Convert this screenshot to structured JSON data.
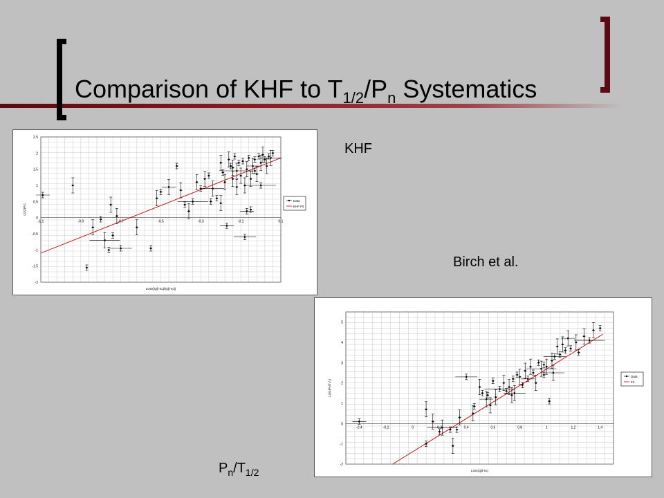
{
  "slide": {
    "title_main_1": "Comparison of KHF to T",
    "title_sub_1": "1/2",
    "title_main_2": "/P",
    "title_sub_2": "n",
    "title_main_3": " Systematics",
    "label_khf": "KHF",
    "label_birch": "Birch et al.",
    "label_pn_main": "P",
    "label_pn_sub": "n",
    "label_pn_mid": "/T",
    "label_pn_sub2": "1/2"
  },
  "colors": {
    "background": "#c0c0c0",
    "accent": "#6b0f16",
    "fit_line": "#cc0000"
  },
  "chart_data": [
    {
      "type": "scatter",
      "xlabel": "LOG([Qβ-Sₙ]/[Qβ-Sₙ])",
      "ylabel": "LOG(Pₙ)",
      "xlim": [
        -1.1,
        0.1
      ],
      "ylim": [
        -2,
        2.5
      ],
      "xticks": [
        "-1.1",
        "-0.9",
        "-0.7",
        "-0.5",
        "-0.3",
        "-0.1",
        "0.1"
      ],
      "xtick_values": [
        -1.1,
        -0.9,
        -0.7,
        -0.5,
        -0.3,
        -0.1,
        0.1
      ],
      "yticks": [
        "-2",
        "-1.5",
        "-1",
        "-0.5",
        "0",
        "0.5",
        "1",
        "1.5",
        "2",
        "2.5"
      ],
      "ytick_values": [
        -2,
        -1.5,
        -1,
        -0.5,
        0,
        0.5,
        1,
        1.5,
        2,
        2.5
      ],
      "legend": [
        "Data",
        "KHF Fit"
      ],
      "legend_position": "right",
      "grid": true,
      "fit": {
        "x": [
          -1.1,
          0.1
        ],
        "y": [
          -1.1,
          1.85
        ]
      },
      "series": [
        {
          "name": "Data",
          "points": [
            [
              -1.09,
              0.7
            ],
            [
              -0.94,
              1.0
            ],
            [
              -0.87,
              -1.55
            ],
            [
              -0.84,
              -0.3
            ],
            [
              -0.8,
              -0.05
            ],
            [
              -0.78,
              -0.7
            ],
            [
              -0.76,
              -1.0
            ],
            [
              -0.75,
              0.4
            ],
            [
              -0.74,
              -0.55
            ],
            [
              -0.72,
              0.05
            ],
            [
              -0.7,
              -0.95
            ],
            [
              -0.62,
              -0.3
            ],
            [
              -0.55,
              -0.95
            ],
            [
              -0.52,
              0.6
            ],
            [
              -0.5,
              0.8
            ],
            [
              -0.46,
              0.95
            ],
            [
              -0.42,
              1.6
            ],
            [
              -0.4,
              0.85
            ],
            [
              -0.38,
              0.4
            ],
            [
              -0.36,
              0.2
            ],
            [
              -0.34,
              0.5
            ],
            [
              -0.32,
              1.1
            ],
            [
              -0.3,
              0.9
            ],
            [
              -0.28,
              1.2
            ],
            [
              -0.26,
              1.3
            ],
            [
              -0.24,
              0.9
            ],
            [
              -0.22,
              0.6
            ],
            [
              -0.2,
              1.7
            ],
            [
              -0.19,
              1.4
            ],
            [
              -0.18,
              1.1
            ],
            [
              -0.17,
              -0.25
            ],
            [
              -0.16,
              1.8
            ],
            [
              -0.15,
              1.6
            ],
            [
              -0.14,
              1.2
            ],
            [
              -0.13,
              1.9
            ],
            [
              -0.12,
              1.45
            ],
            [
              -0.11,
              1.7
            ],
            [
              -0.1,
              1.3
            ],
            [
              -0.09,
              1.75
            ],
            [
              -0.08,
              1.0
            ],
            [
              -0.08,
              -0.6
            ],
            [
              -0.07,
              1.5
            ],
            [
              -0.06,
              1.85
            ],
            [
              -0.05,
              1.2
            ],
            [
              -0.05,
              0.25
            ],
            [
              -0.04,
              1.6
            ],
            [
              -0.03,
              1.8
            ],
            [
              -0.02,
              1.35
            ],
            [
              -0.01,
              1.9
            ],
            [
              0.0,
              1.7
            ],
            [
              0.0,
              1.0
            ],
            [
              0.01,
              1.95
            ],
            [
              0.02,
              1.8
            ],
            [
              0.03,
              1.6
            ],
            [
              0.04,
              1.9
            ],
            [
              0.05,
              1.85
            ],
            [
              0.06,
              2.0
            ],
            [
              -0.2,
              0.45
            ],
            [
              -0.25,
              0.5
            ],
            [
              -0.12,
              0.95
            ],
            [
              -0.07,
              0.2
            ],
            [
              -0.14,
              1.55
            ],
            [
              -0.03,
              1.45
            ]
          ]
        },
        {
          "name": "KHF Fit",
          "values": [
            -1.1,
            1.85
          ]
        }
      ]
    },
    {
      "type": "scatter",
      "xlabel": "LOG(Qβ-Sₙ)",
      "ylabel": "LOG(Pₙ/T₁/₂)",
      "xlim": [
        -0.5,
        1.5
      ],
      "ylim": [
        -2,
        5.5
      ],
      "xticks": [
        "-0.4",
        "-0.2",
        "0",
        "0.2",
        "0.4",
        "0.6",
        "0.8",
        "1",
        "1.2",
        "1.4"
      ],
      "xtick_values": [
        -0.4,
        -0.2,
        0,
        0.2,
        0.4,
        0.6,
        0.8,
        1,
        1.2,
        1.4
      ],
      "yticks": [
        "-2",
        "-1",
        "0",
        "1",
        "2",
        "3",
        "4",
        "5"
      ],
      "ytick_values": [
        -2,
        -1,
        0,
        1,
        2,
        3,
        4,
        5
      ],
      "legend": [
        "Data",
        "Fit"
      ],
      "legend_position": "right",
      "grid": true,
      "fit": {
        "x": [
          -0.15,
          1.42
        ],
        "y": [
          -2.0,
          4.4
        ]
      },
      "series": [
        {
          "name": "Data",
          "points": [
            [
              -0.4,
              0.1
            ],
            [
              0.1,
              0.7
            ],
            [
              0.1,
              -1.0
            ],
            [
              0.15,
              0.1
            ],
            [
              0.2,
              -0.4
            ],
            [
              0.22,
              -0.2
            ],
            [
              0.28,
              -0.3
            ],
            [
              0.3,
              -1.1
            ],
            [
              0.33,
              -0.3
            ],
            [
              0.35,
              0.3
            ],
            [
              0.4,
              2.3
            ],
            [
              0.45,
              0.5
            ],
            [
              0.46,
              0.85
            ],
            [
              0.5,
              1.8
            ],
            [
              0.52,
              1.5
            ],
            [
              0.55,
              1.2
            ],
            [
              0.56,
              1.4
            ],
            [
              0.58,
              0.9
            ],
            [
              0.6,
              2.1
            ],
            [
              0.62,
              1.3
            ],
            [
              0.65,
              1.7
            ],
            [
              0.68,
              2.0
            ],
            [
              0.7,
              1.6
            ],
            [
              0.72,
              1.8
            ],
            [
              0.75,
              2.2
            ],
            [
              0.76,
              1.5
            ],
            [
              0.78,
              2.4
            ],
            [
              0.8,
              2.3
            ],
            [
              0.82,
              1.9
            ],
            [
              0.84,
              2.6
            ],
            [
              0.86,
              2.2
            ],
            [
              0.88,
              2.8
            ],
            [
              0.9,
              2.5
            ],
            [
              0.92,
              2.0
            ],
            [
              0.94,
              3.0
            ],
            [
              0.96,
              2.7
            ],
            [
              0.98,
              2.4
            ],
            [
              1.0,
              2.8
            ],
            [
              1.02,
              1.1
            ],
            [
              1.04,
              3.1
            ],
            [
              1.06,
              3.3
            ],
            [
              1.08,
              3.8
            ],
            [
              1.1,
              3.4
            ],
            [
              1.12,
              3.9
            ],
            [
              1.14,
              3.6
            ],
            [
              1.16,
              4.2
            ],
            [
              1.18,
              3.7
            ],
            [
              1.22,
              4.0
            ],
            [
              1.24,
              3.5
            ],
            [
              1.28,
              4.3
            ],
            [
              1.32,
              4.1
            ],
            [
              1.35,
              4.6
            ],
            [
              1.4,
              4.7
            ],
            [
              0.74,
              1.4
            ],
            [
              0.98,
              2.9
            ],
            [
              1.05,
              2.5
            ]
          ]
        },
        {
          "name": "Fit",
          "values": [
            -2.0,
            4.4
          ]
        }
      ]
    }
  ]
}
